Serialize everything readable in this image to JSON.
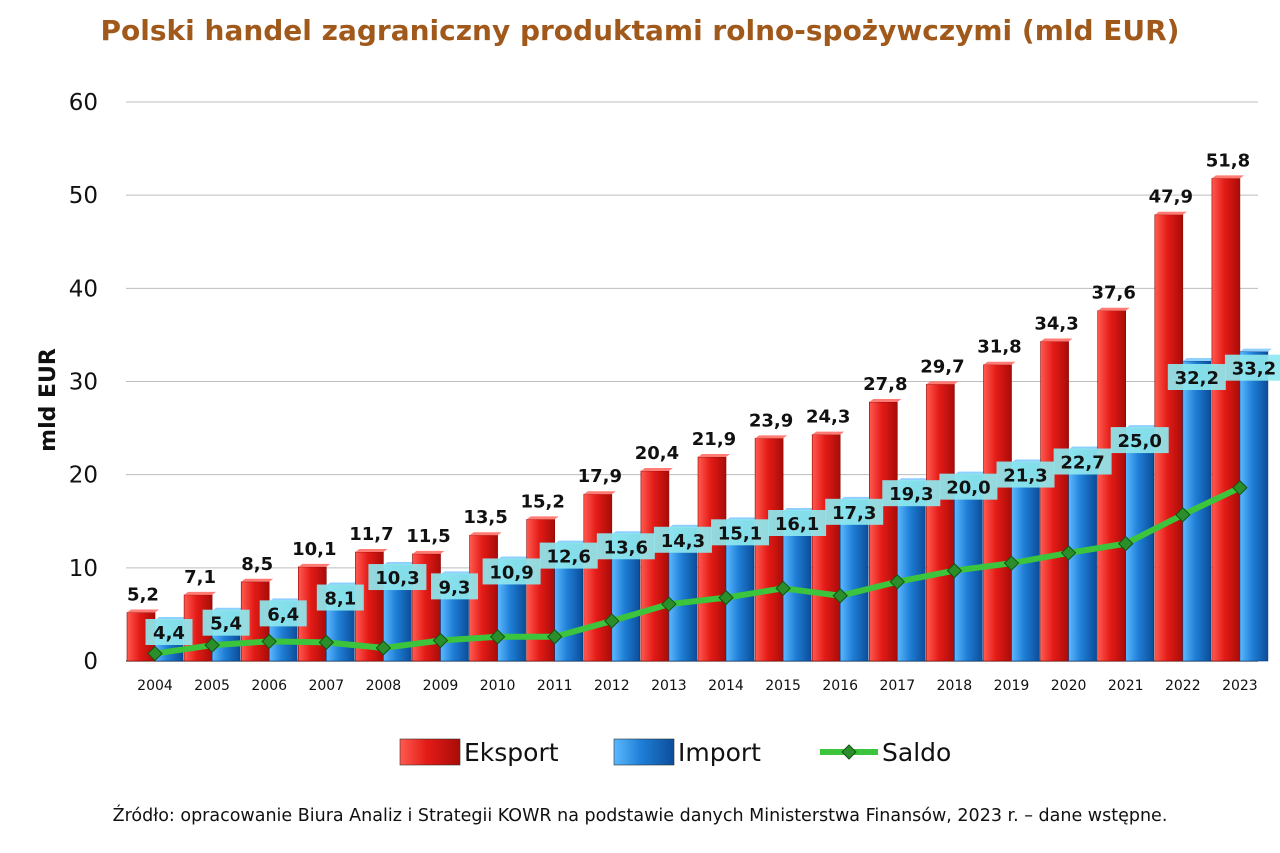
{
  "chart_data": {
    "type": "bar",
    "title": "Polski handel zagraniczny produktami rolno-spożywczymi (mld EUR)",
    "xlabel": "",
    "ylabel": "mld EUR",
    "ylim": [
      0,
      60
    ],
    "yticks": [
      0,
      10,
      20,
      30,
      40,
      50,
      60
    ],
    "grid": true,
    "legend_position": "bottom",
    "categories": [
      "2004",
      "2005",
      "2006",
      "2007",
      "2008",
      "2009",
      "2010",
      "2011",
      "2012",
      "2013",
      "2014",
      "2015",
      "2016",
      "2017",
      "2018",
      "2019",
      "2020",
      "2021",
      "2022",
      "2023"
    ],
    "series": [
      {
        "name": "Eksport",
        "type": "bar",
        "color": "#e41b17",
        "values": [
          5.2,
          7.1,
          8.5,
          10.1,
          11.7,
          11.5,
          13.5,
          15.2,
          17.9,
          20.4,
          21.9,
          23.9,
          24.3,
          27.8,
          29.7,
          31.8,
          34.3,
          37.6,
          47.9,
          51.8
        ],
        "labels": [
          "5,2",
          "7,1",
          "8,5",
          "10,1",
          "11,7",
          "11,5",
          "13,5",
          "15,2",
          "17,9",
          "20,4",
          "21,9",
          "23,9",
          "24,3",
          "27,8",
          "29,7",
          "31,8",
          "34,3",
          "37,6",
          "47,9",
          "51,8"
        ]
      },
      {
        "name": "Import",
        "type": "bar",
        "color": "#1f7fd6",
        "values": [
          4.4,
          5.4,
          6.4,
          8.1,
          10.3,
          9.3,
          10.9,
          12.6,
          13.6,
          14.3,
          15.1,
          16.1,
          17.3,
          19.3,
          20.0,
          21.3,
          22.7,
          25.0,
          32.2,
          33.2
        ],
        "labels": [
          "4,4",
          "5,4",
          "6,4",
          "8,1",
          "10,3",
          "9,3",
          "10,9",
          "12,6",
          "13,6",
          "14,3",
          "15,1",
          "16,1",
          "17,3",
          "19,3",
          "20,0",
          "21,3",
          "22,7",
          "25,0",
          "32,2",
          "33,2"
        ]
      },
      {
        "name": "Saldo",
        "type": "line",
        "color": "#3cc43c",
        "values": [
          0.8,
          1.7,
          2.1,
          2.0,
          1.4,
          2.2,
          2.6,
          2.6,
          4.3,
          6.1,
          6.8,
          7.8,
          7.0,
          8.5,
          9.7,
          10.5,
          11.6,
          12.6,
          15.7,
          18.6
        ]
      }
    ]
  },
  "source_note": "Źródło: opracowanie Biura Analiz i Strategii KOWR na podstawie danych Ministerstwa Finansów, 2023 r. – dane wstępne."
}
